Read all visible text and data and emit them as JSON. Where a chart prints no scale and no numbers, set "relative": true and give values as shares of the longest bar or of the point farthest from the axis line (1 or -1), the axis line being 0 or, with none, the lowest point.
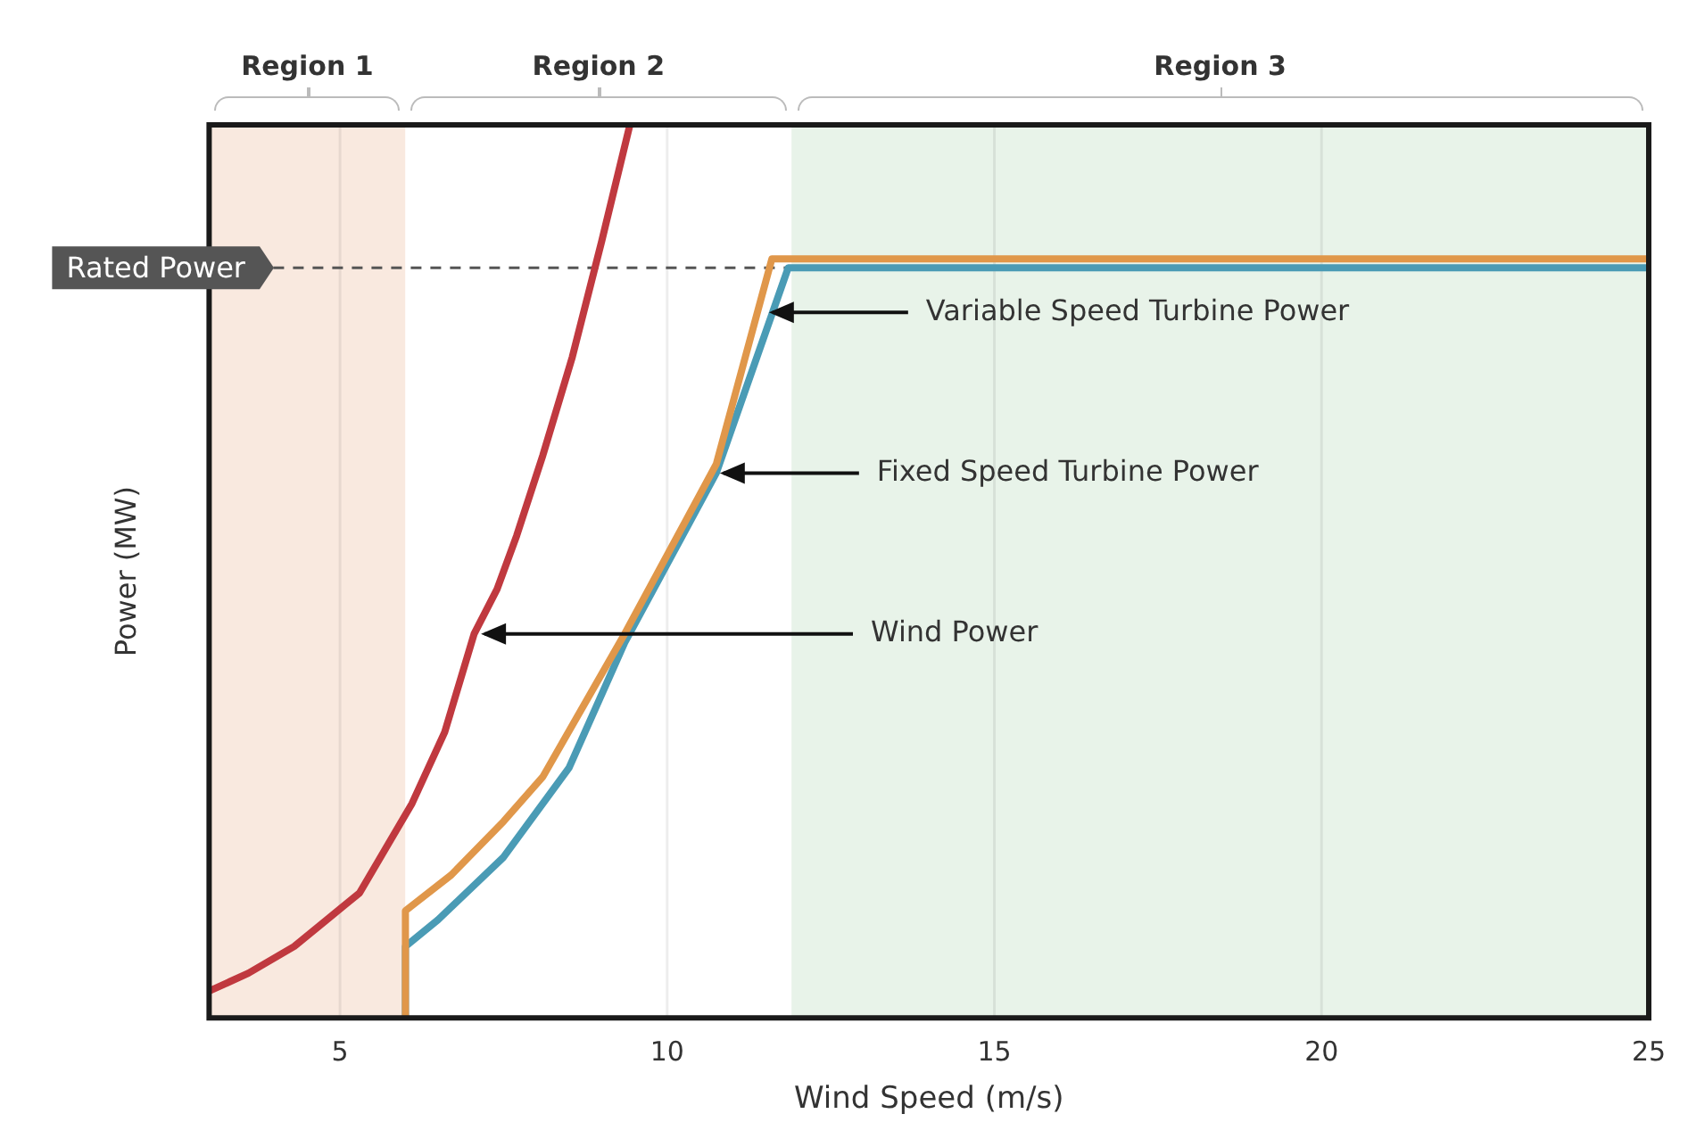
{
  "chart_data": {
    "type": "line",
    "relative": true,
    "xlabel": "Wind Speed (m/s)",
    "ylabel": "Power (MW)",
    "xlim": [
      3,
      25
    ],
    "xticks": [
      5,
      10,
      15,
      20,
      25
    ],
    "grid": "x",
    "marker": "none",
    "line_style": "solid",
    "series": [
      {
        "color": "#c0393f",
        "x": [
          3,
          3.6,
          4.3,
          4.8,
          5.3,
          5.7,
          6.1,
          6.6,
          7.05,
          7.4,
          7.7,
          8.1,
          8.55,
          9,
          9.43
        ],
        "values": [
          0.03,
          0.05,
          0.08,
          0.11,
          0.14,
          0.19,
          0.24,
          0.32,
          0.43,
          0.48,
          0.54,
          0.63,
          0.74,
          0.87,
          1
        ]
      },
      {
        "color": "#e0974a",
        "x": [
          6,
          6,
          6.7,
          7.5,
          8.1,
          9.35,
          10.75,
          11.6,
          25
        ],
        "values": [
          0,
          0.12,
          0.16,
          0.22,
          0.27,
          0.43,
          0.62,
          0.85,
          0.85
        ]
      },
      {
        "color": "#4a9bb5",
        "x": [
          6,
          6,
          6.5,
          7.5,
          8.5,
          9.35,
          10.75,
          11.85,
          25
        ],
        "values": [
          0,
          0.08,
          0.11,
          0.18,
          0.28,
          0.42,
          0.61,
          0.84,
          0.84
        ]
      }
    ],
    "bands": [
      {
        "axis": "x",
        "from": 3,
        "to": 6,
        "label": "Region 1",
        "color": "#f9e9df"
      },
      {
        "axis": "x",
        "from": 6,
        "to": 11.9,
        "label": "Region 2",
        "color": "#ffffff"
      },
      {
        "axis": "x",
        "from": 11.9,
        "to": 25,
        "label": "Region 3",
        "color": "#e8f3e9"
      }
    ],
    "ref_lines": [
      {
        "axis": "y",
        "value": 0.84,
        "label": "Rated Power",
        "line_style": "dashed",
        "color": "#555555"
      }
    ],
    "annotations": [
      {
        "text": "Variable Speed Turbine Power",
        "x": 11.5,
        "y": 0.79
      },
      {
        "text": "Fixed Speed Turbine Power",
        "x": 10.75,
        "y": 0.61
      },
      {
        "text": "Wind Power",
        "x": 7.1,
        "y": 0.43
      }
    ]
  }
}
